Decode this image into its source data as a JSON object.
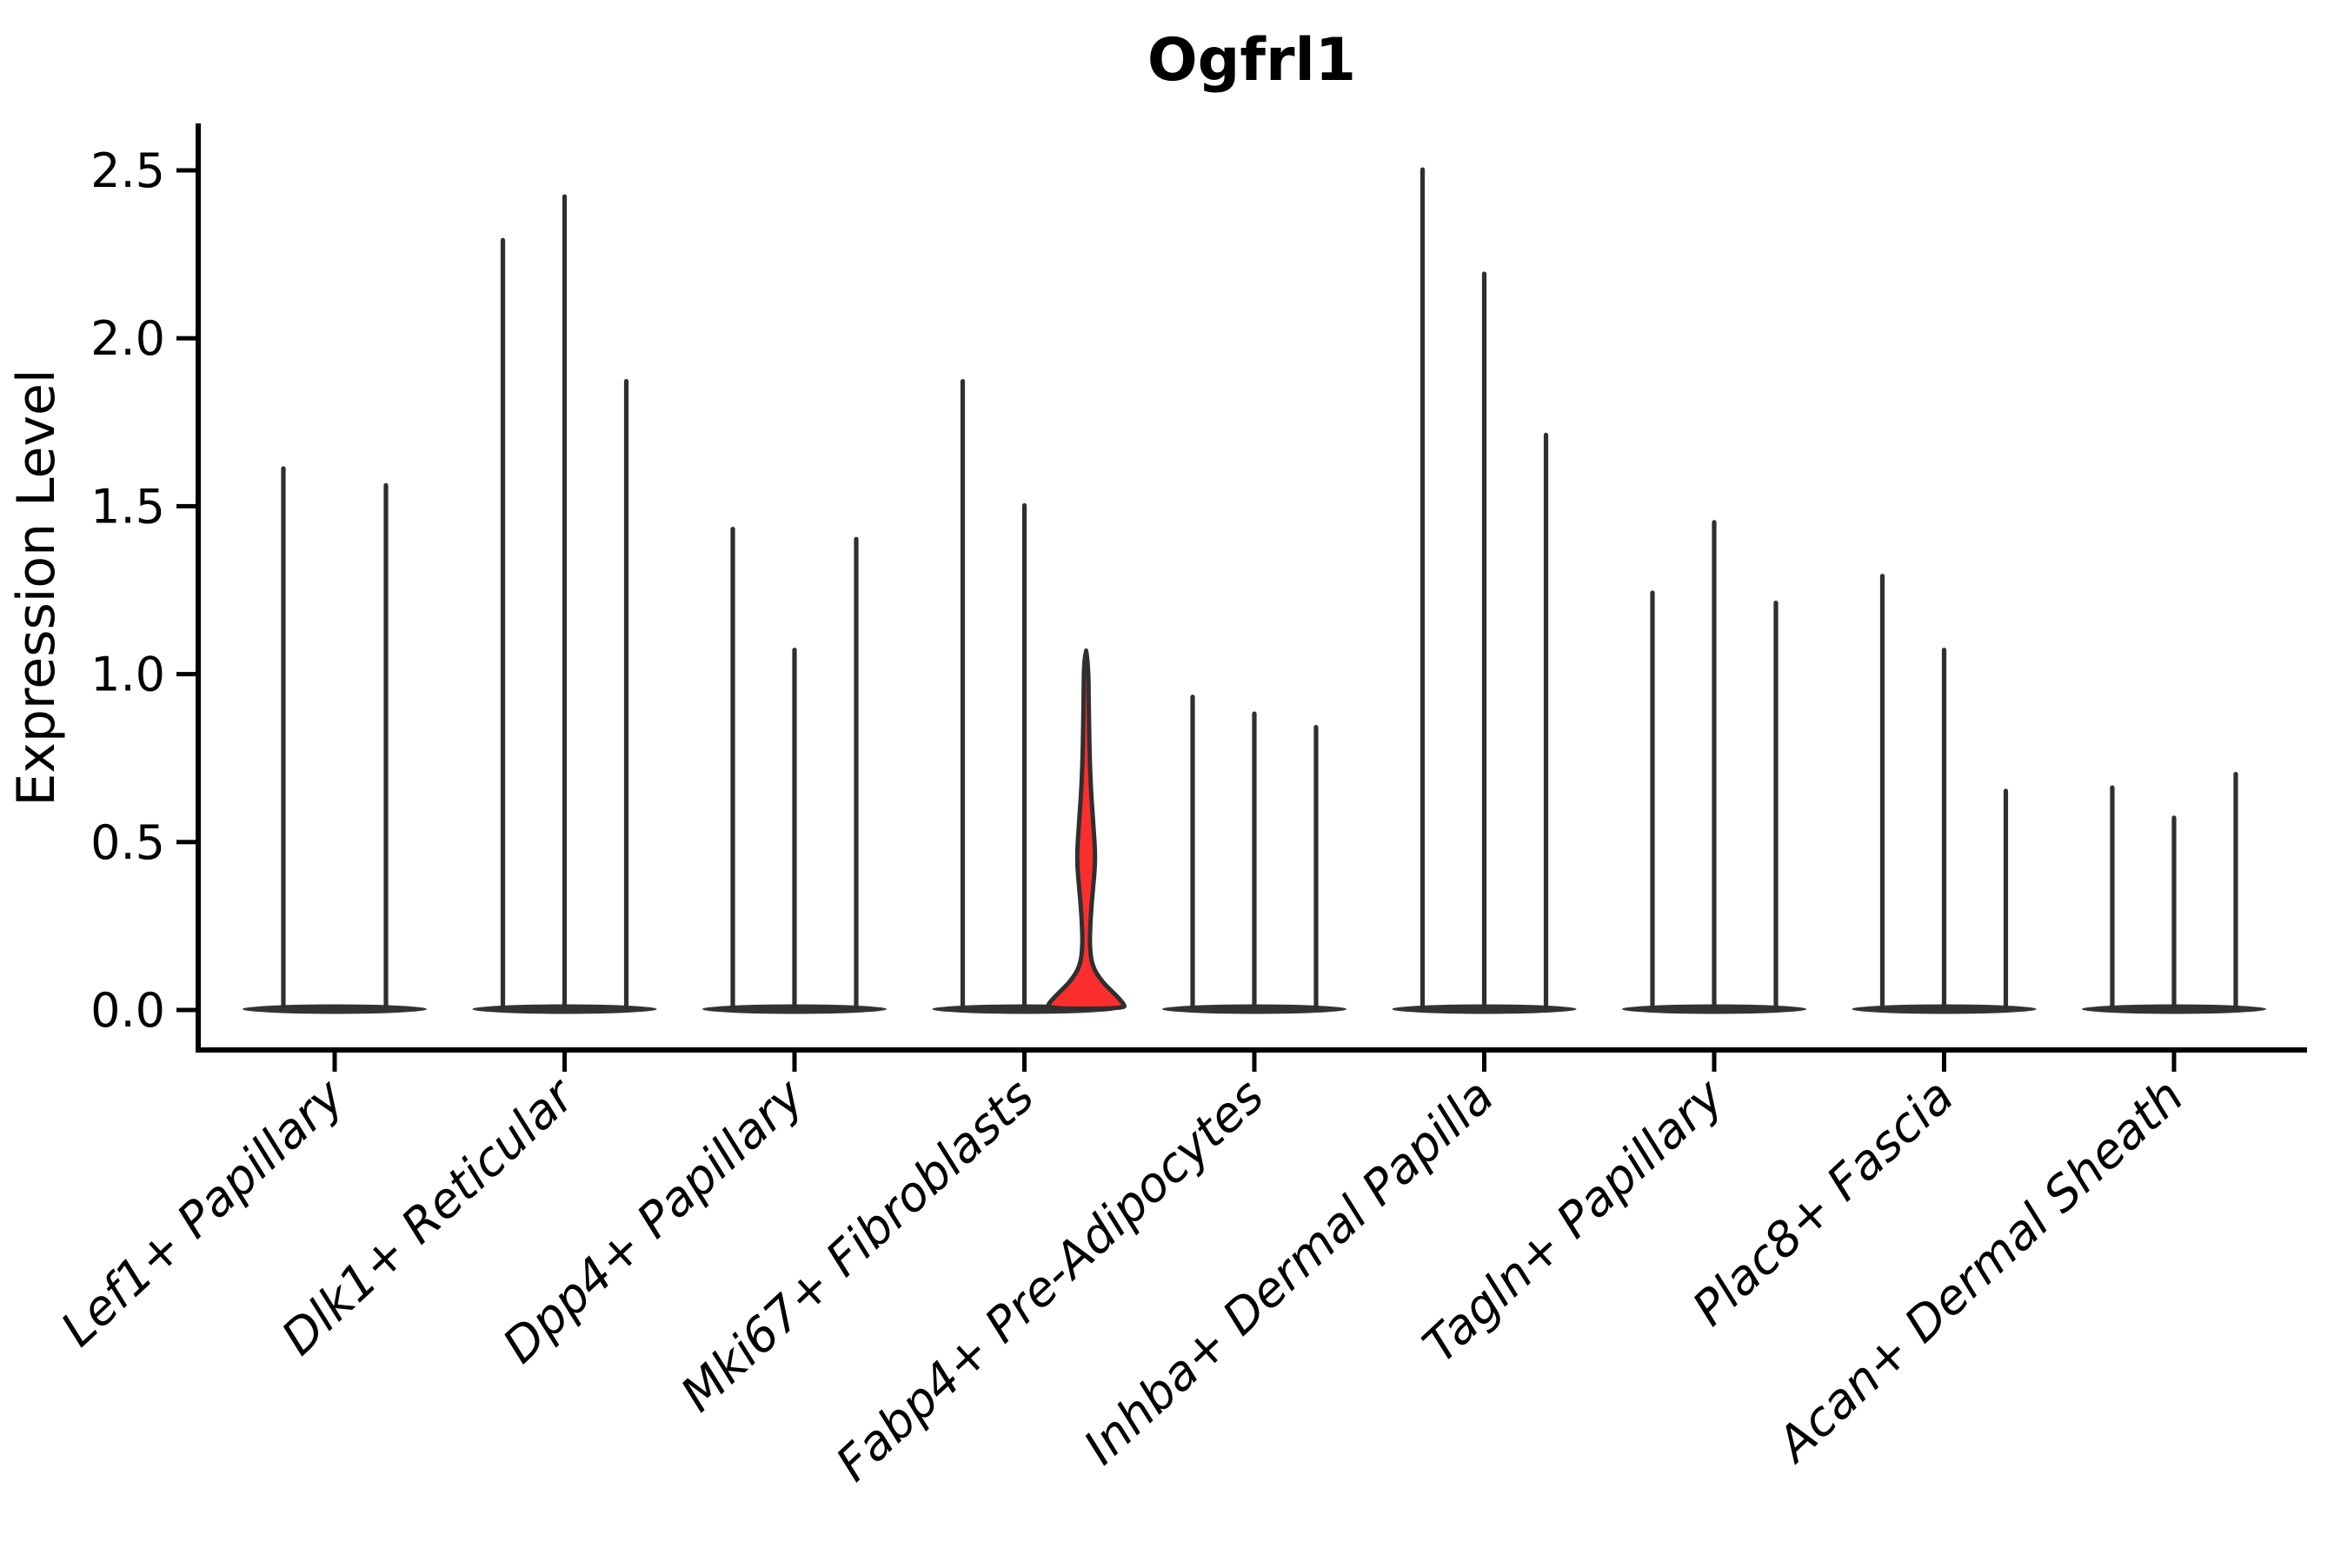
{
  "figure": {
    "title": "Ogfrl1",
    "ylabel": "Expression Level"
  },
  "chart_data": {
    "type": "violin",
    "title": "Ogfrl1",
    "xlabel": "",
    "ylabel": "Expression Level",
    "ylim": [
      0,
      2.65
    ],
    "yticks": [
      "0.0",
      "0.5",
      "1.0",
      "1.5",
      "2.0",
      "2.5"
    ],
    "grid": false,
    "legend": "none",
    "categories": [
      "Lef1+ Papillary",
      "Dlk1+ Reticular",
      "Dpp4+ Papillary",
      "Mki67+ Fibroblasts",
      "Fabp4+ Pre-Adipocytes",
      "Inhba+ Dermal Papilla",
      "Tagln+ Papillary",
      "Plac8+ Fascia",
      "Acan+ Dermal Sheath"
    ],
    "series": [
      {
        "category": "Lef1+ Papillary",
        "violin_maxima": [
          1.62,
          1.57
        ],
        "highlight_index": null
      },
      {
        "category": "Dlk1+ Reticular",
        "violin_maxima": [
          2.3,
          2.43,
          1.88
        ],
        "highlight_index": null
      },
      {
        "category": "Dpp4+ Papillary",
        "violin_maxima": [
          1.44,
          1.08,
          1.41
        ],
        "highlight_index": null
      },
      {
        "category": "Mki67+ Fibroblasts",
        "violin_maxima": [
          1.88,
          1.51,
          1.07
        ],
        "highlight_index": 2
      },
      {
        "category": "Fabp4+ Pre-Adipocytes",
        "violin_maxima": [
          0.94,
          0.89,
          0.85
        ],
        "highlight_index": null
      },
      {
        "category": "Inhba+ Dermal Papilla",
        "violin_maxima": [
          2.51,
          2.2,
          1.72
        ],
        "highlight_index": null
      },
      {
        "category": "Tagln+ Papillary",
        "violin_maxima": [
          1.25,
          1.46,
          1.22
        ],
        "highlight_index": null
      },
      {
        "category": "Plac8+ Fascia",
        "violin_maxima": [
          1.3,
          1.08,
          0.66
        ],
        "highlight_index": null
      },
      {
        "category": "Acan+ Dermal Sheath",
        "violin_maxima": [
          0.67,
          0.58,
          0.71
        ],
        "highlight_index": null
      }
    ],
    "highlight_violin": {
      "category": "Mki67+ Fibroblasts",
      "max_expression": 1.07,
      "bulge_center": 0.45,
      "fill": "#fb2e2e"
    },
    "colors": {
      "violin_stroke": "#2f2f2f",
      "violin_base": "#333333",
      "highlight_fill": "#fb2e2e",
      "axis": "#000000",
      "background": "#ffffff"
    }
  }
}
